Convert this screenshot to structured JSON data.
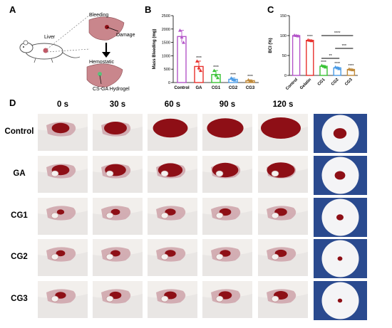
{
  "panels": {
    "a": "A",
    "b": "B",
    "c": "C",
    "d": "D"
  },
  "schematic": {
    "liver": "Liver",
    "bleeding": "Bleeding",
    "damage": "Damage",
    "hemostatic": "Hemostatic",
    "hydrogel": "CS-GA Hydrogel"
  },
  "chart_data": [
    {
      "type": "bar",
      "ylabel": "Mass Bleeding (mg)",
      "categories": [
        "Control",
        "GA",
        "CG1",
        "CG2",
        "CG3"
      ],
      "values": [
        1720,
        600,
        300,
        120,
        70
      ],
      "points": [
        [
          1950,
          1700,
          1500
        ],
        [
          800,
          550,
          450
        ],
        [
          450,
          280,
          180
        ],
        [
          170,
          110,
          90
        ],
        [
          100,
          60,
          50
        ]
      ],
      "colors": [
        "#b455c9",
        "#e8302c",
        "#38c234",
        "#4a9be6",
        "#c08a3a"
      ],
      "significance": [
        "",
        "****",
        "****",
        "****",
        "****"
      ],
      "ylim": [
        0,
        2500
      ],
      "yticks": [
        0,
        500,
        1000,
        1500,
        2000,
        2500
      ]
    },
    {
      "type": "bar",
      "ylabel": "BCI (%)",
      "categories": [
        "Control",
        "Gelatin",
        "CG1",
        "CG2",
        "CG3"
      ],
      "values": [
        100,
        88,
        23,
        19,
        15
      ],
      "points": [
        [
          101,
          100,
          99
        ],
        [
          89,
          88,
          87
        ],
        [
          25,
          23,
          21
        ],
        [
          21,
          19,
          17
        ],
        [
          16,
          15,
          14
        ]
      ],
      "colors": [
        "#b455c9",
        "#e8302c",
        "#38c234",
        "#4a9be6",
        "#c08a3a"
      ],
      "significance": [
        "",
        "****",
        "****",
        "****",
        "****"
      ],
      "brackets": [
        {
          "from": 2,
          "to": 4,
          "label": "****"
        },
        {
          "from": 3,
          "to": 4,
          "label": "***"
        },
        {
          "from": 2,
          "to": 3,
          "label": "**"
        }
      ],
      "ylim": [
        0,
        150
      ],
      "yticks": [
        0,
        50,
        100,
        150
      ]
    }
  ],
  "photo_grid": {
    "times": [
      "0 s",
      "30 s",
      "60 s",
      "90 s",
      "120 s"
    ],
    "groups": [
      "Control",
      "GA",
      "CG1",
      "CG2",
      "CG3"
    ],
    "blood_level": [
      [
        0.35,
        0.5,
        0.85,
        0.9,
        1.0
      ],
      [
        0.35,
        0.45,
        0.55,
        0.6,
        0.65
      ],
      [
        0.05,
        0.1,
        0.15,
        0.18,
        0.2
      ],
      [
        0.1,
        0.12,
        0.15,
        0.15,
        0.18
      ],
      [
        0.15,
        0.18,
        0.2,
        0.22,
        0.25
      ]
    ],
    "paper_stain_level": [
      0.6,
      0.45,
      0.25,
      0.12,
      0.1
    ]
  },
  "colors": {
    "blood": "#8e0f16",
    "liver": "#c9868c",
    "paper": "#f4f4f6",
    "paper_bg": "#2a4a8f"
  }
}
